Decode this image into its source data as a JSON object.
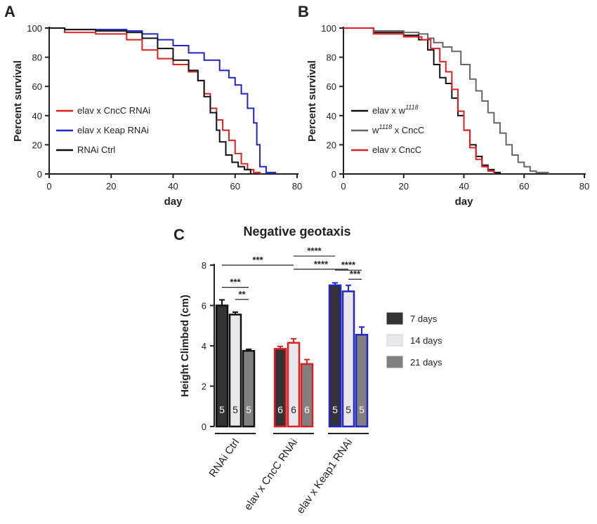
{
  "chart_data": [
    {
      "panel": "A",
      "type": "line",
      "step": true,
      "xlabel": "day",
      "ylabel": "Percent survival",
      "xlim": [
        0,
        80
      ],
      "ylim": [
        0,
        100
      ],
      "xticks": [
        0,
        20,
        40,
        60,
        80
      ],
      "yticks": [
        0,
        20,
        40,
        60,
        80,
        100
      ],
      "series": [
        {
          "name": "elav x CncC RNAi",
          "color": "#e02020",
          "x": [
            0,
            5,
            15,
            22,
            25,
            30,
            35,
            40,
            45,
            48,
            50,
            52,
            54,
            56,
            58,
            60,
            62,
            64,
            66,
            68
          ],
          "y": [
            100,
            97,
            96,
            96,
            92,
            85,
            79,
            75,
            70,
            64,
            55,
            45,
            37,
            30,
            23,
            14,
            7,
            3,
            1,
            0
          ]
        },
        {
          "name": "elav x Keap RNAi",
          "color": "#2323cc",
          "x": [
            0,
            5,
            15,
            25,
            30,
            35,
            40,
            45,
            50,
            55,
            58,
            60,
            62,
            64,
            66,
            67,
            68,
            70,
            73
          ],
          "y": [
            100,
            99,
            99,
            98,
            96,
            92,
            88,
            83,
            78,
            71,
            66,
            61,
            55,
            45,
            35,
            20,
            5,
            1,
            0
          ]
        },
        {
          "name": "RNAi Ctrl",
          "color": "#111111",
          "x": [
            0,
            5,
            15,
            25,
            30,
            35,
            40,
            45,
            48,
            50,
            52,
            54,
            55,
            57,
            59,
            61,
            63,
            65
          ],
          "y": [
            100,
            99,
            98,
            97,
            93,
            86,
            78,
            71,
            64,
            53,
            42,
            30,
            22,
            13,
            8,
            5,
            3,
            0
          ]
        }
      ]
    },
    {
      "panel": "B",
      "type": "line",
      "step": true,
      "xlabel": "day",
      "ylabel": "Percent survival",
      "xlim": [
        0,
        80
      ],
      "ylim": [
        0,
        100
      ],
      "xticks": [
        0,
        20,
        40,
        60,
        80
      ],
      "yticks": [
        0,
        20,
        40,
        60,
        80,
        100
      ],
      "series": [
        {
          "name": "elav x w1118",
          "label_main": "elav x w",
          "label_sup": "1118",
          "label_after": "",
          "color": "#111111",
          "x": [
            0,
            10,
            20,
            25,
            28,
            30,
            32,
            34,
            36,
            38,
            40,
            42,
            44,
            46,
            48,
            50,
            52
          ],
          "y": [
            100,
            97,
            95,
            92,
            85,
            75,
            66,
            62,
            52,
            40,
            30,
            20,
            12,
            6,
            3,
            1,
            0
          ]
        },
        {
          "name": "w1118 x CncC",
          "label_main": "w",
          "label_sup": "1118",
          "label_after": " x CncC",
          "color": "#666666",
          "x": [
            0,
            10,
            20,
            25,
            28,
            30,
            33,
            36,
            39,
            42,
            44,
            46,
            48,
            50,
            52,
            54,
            56,
            58,
            60,
            62,
            64,
            68
          ],
          "y": [
            100,
            98,
            97,
            96,
            93,
            90,
            87,
            84,
            75,
            65,
            57,
            50,
            42,
            35,
            28,
            20,
            13,
            8,
            5,
            2,
            1,
            0
          ]
        },
        {
          "name": "elav x CncC",
          "label_main": "elav x CncC",
          "label_sup": "",
          "label_after": "",
          "color": "#e02020",
          "x": [
            0,
            10,
            20,
            26,
            29,
            32,
            34,
            36,
            38,
            40,
            42,
            44,
            46,
            48,
            50
          ],
          "y": [
            100,
            96,
            94,
            92,
            86,
            77,
            70,
            58,
            43,
            30,
            18,
            10,
            5,
            2,
            0
          ]
        }
      ]
    },
    {
      "panel": "C",
      "type": "bar",
      "title": "Negative geotaxis",
      "ylabel": "Height Climbed (cm)",
      "ylim": [
        0,
        8
      ],
      "yticks": [
        0,
        2,
        4,
        6,
        8
      ],
      "categories": [
        "RNAi Ctrl",
        "elav x CncC RNAi",
        "elav x Keap1 RNAi"
      ],
      "group_colors": [
        "#111111",
        "#e02020",
        "#2323cc"
      ],
      "series": [
        {
          "name": "7 days",
          "fill": "#333333",
          "values": [
            6.0,
            3.85,
            7.0
          ],
          "errors": [
            0.28,
            0.12,
            0.12
          ],
          "n": [
            "5",
            "6",
            "5"
          ]
        },
        {
          "name": "14 days",
          "fill": "#e8e8ec",
          "values": [
            5.55,
            4.15,
            6.7
          ],
          "errors": [
            0.12,
            0.2,
            0.3
          ],
          "n": [
            "5",
            "6",
            "5"
          ]
        },
        {
          "name": "21 days",
          "fill": "#808080",
          "values": [
            3.75,
            3.1,
            4.55
          ],
          "errors": [
            0.08,
            0.22,
            0.38
          ],
          "n": [
            "5",
            "6",
            "5"
          ]
        }
      ],
      "significance": [
        {
          "label": "***",
          "from": [
            0,
            0
          ],
          "to": [
            1,
            1
          ],
          "level": 8.0
        },
        {
          "label": "***",
          "from": [
            0,
            0
          ],
          "to": [
            0,
            2
          ],
          "level": 6.9
        },
        {
          "label": "**",
          "from": [
            0,
            1
          ],
          "to": [
            0,
            2
          ],
          "level": 6.3
        },
        {
          "label": "****",
          "from": [
            1,
            1
          ],
          "to": [
            2,
            1
          ],
          "level": 7.8
        },
        {
          "label": "****",
          "from": [
            1,
            1
          ],
          "to": [
            2,
            0
          ],
          "level": 8.45
        },
        {
          "label": "****",
          "from": [
            2,
            0
          ],
          "to": [
            2,
            2
          ],
          "level": 7.75
        },
        {
          "label": "***",
          "from": [
            2,
            1
          ],
          "to": [
            2,
            2
          ],
          "level": 7.3
        }
      ]
    }
  ],
  "panels": {
    "a": "A",
    "b": "B",
    "c": "C"
  }
}
